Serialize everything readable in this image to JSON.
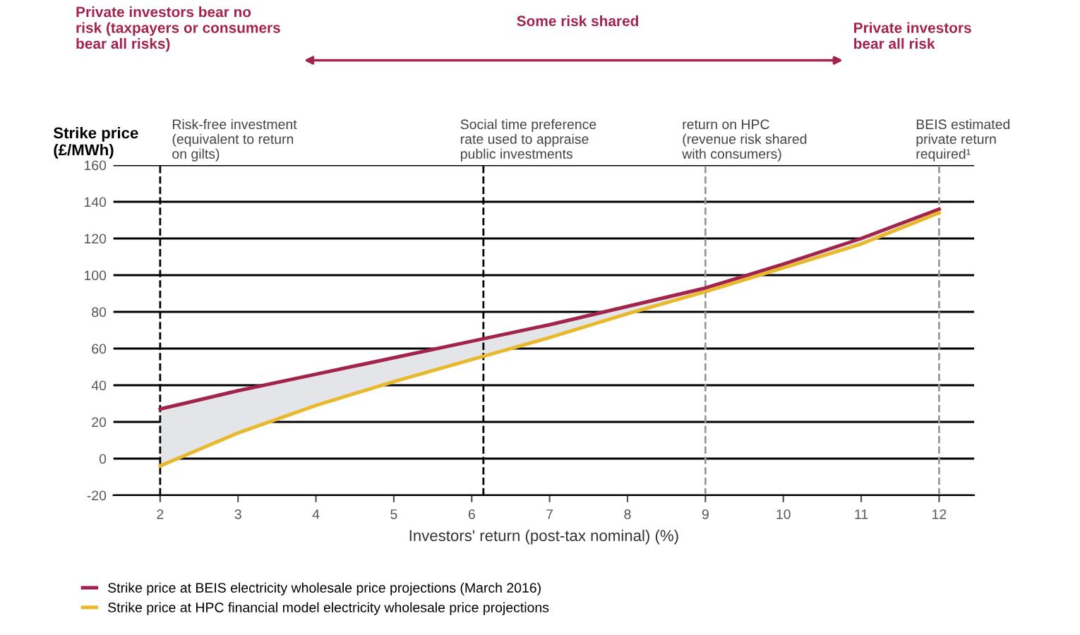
{
  "chart_data": {
    "type": "line",
    "xlabel": "Investors' return (post-tax nominal) (%)",
    "ylabel": "Strike price\n(£/MWh)",
    "x": [
      2,
      3,
      4,
      5,
      6,
      7,
      8,
      9,
      10,
      11,
      12
    ],
    "series": [
      {
        "name": "Strike price at BEIS electricity wholesale price projections (March 2016)",
        "color": "#a3244a",
        "values": [
          27,
          37,
          46,
          55,
          64,
          73,
          83,
          93,
          106,
          120,
          136
        ],
        "lower": [
          -4,
          14,
          29,
          42,
          54,
          66,
          79,
          91,
          104,
          117,
          134
        ],
        "upper": [
          27,
          37,
          46,
          55,
          64,
          73,
          83,
          93,
          106,
          120,
          136
        ]
      },
      {
        "name": "Strike price at HPC financial model electricity wholesale price projections",
        "color": "#e8b92c",
        "values": [
          -4,
          14,
          29,
          42,
          54,
          66,
          79,
          91,
          104,
          117,
          134
        ]
      }
    ],
    "xlim": [
      1.4,
      12.45
    ],
    "ylim": [
      -20,
      160
    ],
    "xticks": [
      2,
      3,
      4,
      5,
      6,
      7,
      8,
      9,
      10,
      11,
      12
    ],
    "yticks": [
      -20,
      0,
      20,
      40,
      60,
      80,
      100,
      120,
      140,
      160
    ],
    "grid": "y",
    "legend": "bottom",
    "marker": "none",
    "line_style": "solid",
    "ref_lines": [
      {
        "axis": "x",
        "value": 2,
        "label": "Risk-free investment\n(equivalent to return\non gilts)",
        "color": "#000000",
        "line_style": "dashed"
      },
      {
        "axis": "x",
        "value": 6.15,
        "label": "Social time preference\nrate used to appraise\npublic investments",
        "color": "#000000",
        "line_style": "dashed"
      },
      {
        "axis": "x",
        "value": 9,
        "label": "return on HPC\n(revenue risk shared\nwith consumers)",
        "color": "#999999",
        "line_style": "dashed"
      },
      {
        "axis": "x",
        "value": 12,
        "label": "BEIS estimated\nprivate return\nrequired¹",
        "color": "#999999",
        "line_style": "dashed"
      }
    ],
    "annotations": [
      "Private investors bear no\nrisk (taxpayers or consumers\nbear all risks)",
      "Some risk shared",
      "Private investors\nbear all risk"
    ]
  }
}
